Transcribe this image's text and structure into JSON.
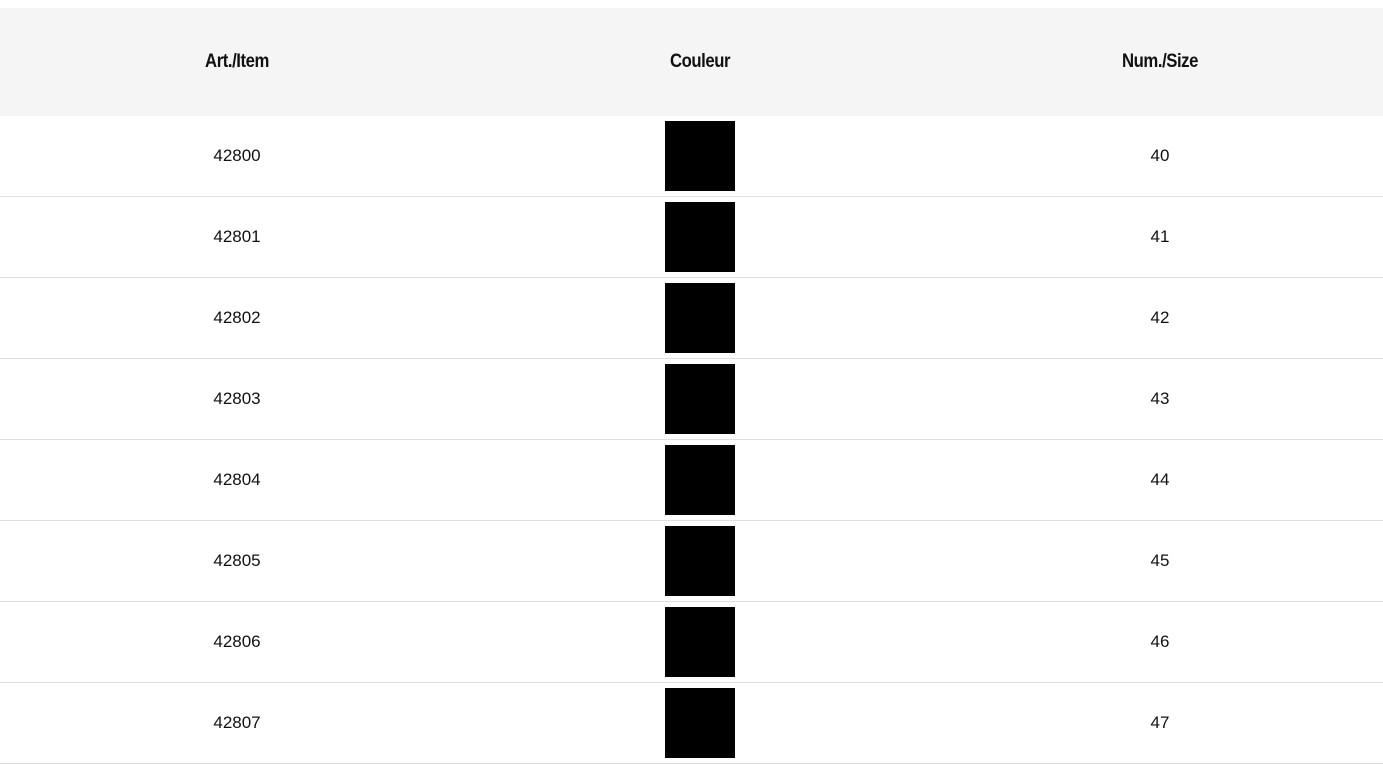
{
  "table": {
    "header": [
      "Art./Item",
      "Couleur",
      "Num./Size"
    ],
    "rows": [
      [
        "42800",
        "40"
      ],
      [
        "42801",
        "41"
      ],
      [
        "42802",
        "42"
      ],
      [
        "42803",
        "43"
      ],
      [
        "42804",
        "44"
      ],
      [
        "42805",
        "45"
      ],
      [
        "42806",
        "46"
      ],
      [
        "42807",
        "47"
      ]
    ]
  }
}
